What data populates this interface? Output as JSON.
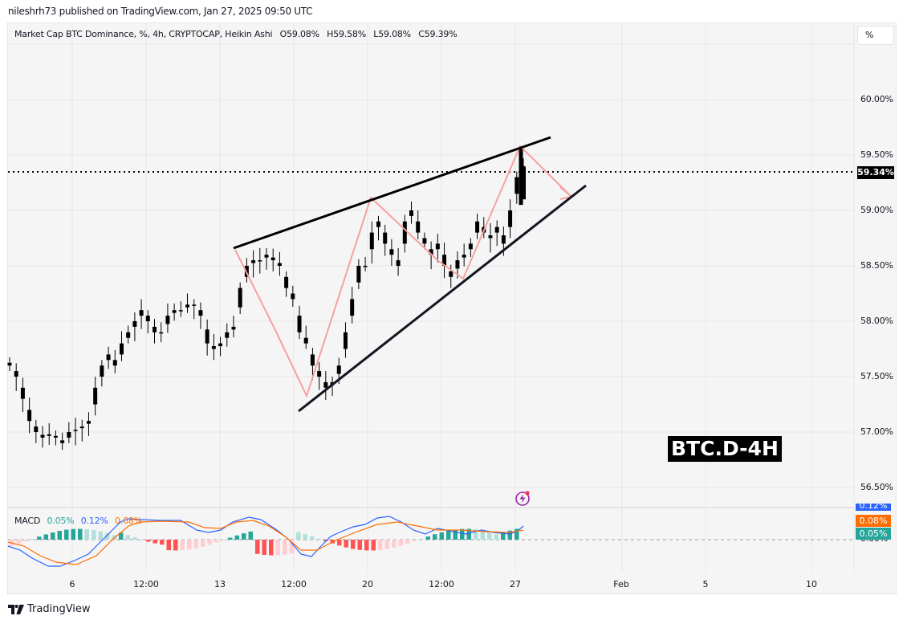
{
  "header": {
    "published": "nileshrh73 published on TradingView.com, Jan 27, 2025 09:50 UTC"
  },
  "legend": {
    "symbol": "Market Cap BTC Dominance, %, 4h, CRYPTOCAP, Heikin Ashi",
    "open": "O59.08%",
    "high": "H59.58%",
    "low": "L59.08%",
    "close": "C59.39%"
  },
  "scale_button": "%",
  "price_axis": {
    "labels": [
      "60.00%",
      "59.50%",
      "59.00%",
      "58.50%",
      "58.00%",
      "57.50%",
      "57.00%",
      "56.50%"
    ],
    "current_price": "59.34%"
  },
  "time_axis": {
    "labels": [
      "6",
      "12:00",
      "13",
      "12:00",
      "20",
      "12:00",
      "27",
      "Feb",
      "5",
      "10"
    ]
  },
  "macd": {
    "title": "MACD",
    "histogram": "0.05%",
    "macd": "0.12%",
    "signal": "0.08%",
    "tags": {
      "macd": "0.12%",
      "signal": "0.08%",
      "histogram": "0.05%",
      "zero": "0.00%"
    }
  },
  "annotation": "BTC.D-4H",
  "footer": {
    "brand": "TradingView"
  },
  "colors": {
    "background": "#f5f5f5",
    "grid": "#e6e6e6",
    "candle": "#000000",
    "trendline": "#000000",
    "zigzag": "#f7a1a1",
    "macd_line": "#2962ff",
    "signal_line": "#ff6d00",
    "hist_up_strong": "#26a69a",
    "hist_up_weak": "#b2dfdb",
    "hist_down_strong": "#ff5252",
    "hist_down_weak": "#ffcdd2"
  },
  "chart_data": {
    "type": "candlestick",
    "title": "Market Cap BTC Dominance, %, 4h, CRYPTOCAP, Heikin Ashi",
    "ylabel": "%",
    "ylim": [
      56.3,
      60.3
    ],
    "x_ticks": [
      "6",
      "12:00",
      "13",
      "12:00",
      "20",
      "12:00",
      "27",
      "Feb",
      "5",
      "10"
    ],
    "last_ohlc": {
      "open": 59.08,
      "high": 59.58,
      "low": 59.08,
      "close": 59.39
    },
    "current_price": 59.34,
    "close_series_approx": [
      57.6,
      57.5,
      57.3,
      57.1,
      57.0,
      56.95,
      56.98,
      56.95,
      56.9,
      57.0,
      57.02,
      57.05,
      57.1,
      57.4,
      57.6,
      57.7,
      57.6,
      57.8,
      57.9,
      58.0,
      58.1,
      58.0,
      57.9,
      57.9,
      58.05,
      58.1,
      58.1,
      58.15,
      58.15,
      58.05,
      57.8,
      57.75,
      57.8,
      57.9,
      57.95,
      58.3,
      58.5,
      58.55,
      58.55,
      58.6,
      58.55,
      58.5,
      58.3,
      58.2,
      57.9,
      57.8,
      57.6,
      57.5,
      57.4,
      57.45,
      57.6,
      57.9,
      58.2,
      58.5,
      58.5,
      58.8,
      58.9,
      58.7,
      58.6,
      58.5,
      58.9,
      59.0,
      58.8,
      58.7,
      58.6,
      58.7,
      58.5,
      58.4,
      58.55,
      58.6,
      58.7,
      58.9,
      58.8,
      58.75,
      58.85,
      58.7,
      59.0,
      59.3,
      59.4
    ],
    "trendlines": [
      {
        "name": "upper",
        "from": [
          58.67,
          "Jan 13"
        ],
        "to": [
          59.65,
          "Jan 28"
        ]
      },
      {
        "name": "lower",
        "from": [
          57.2,
          "Jan 16"
        ],
        "to": [
          59.23,
          "Jan 29"
        ]
      }
    ],
    "macd_values": {
      "histogram": 0.05,
      "macd": 0.12,
      "signal": 0.08
    }
  }
}
